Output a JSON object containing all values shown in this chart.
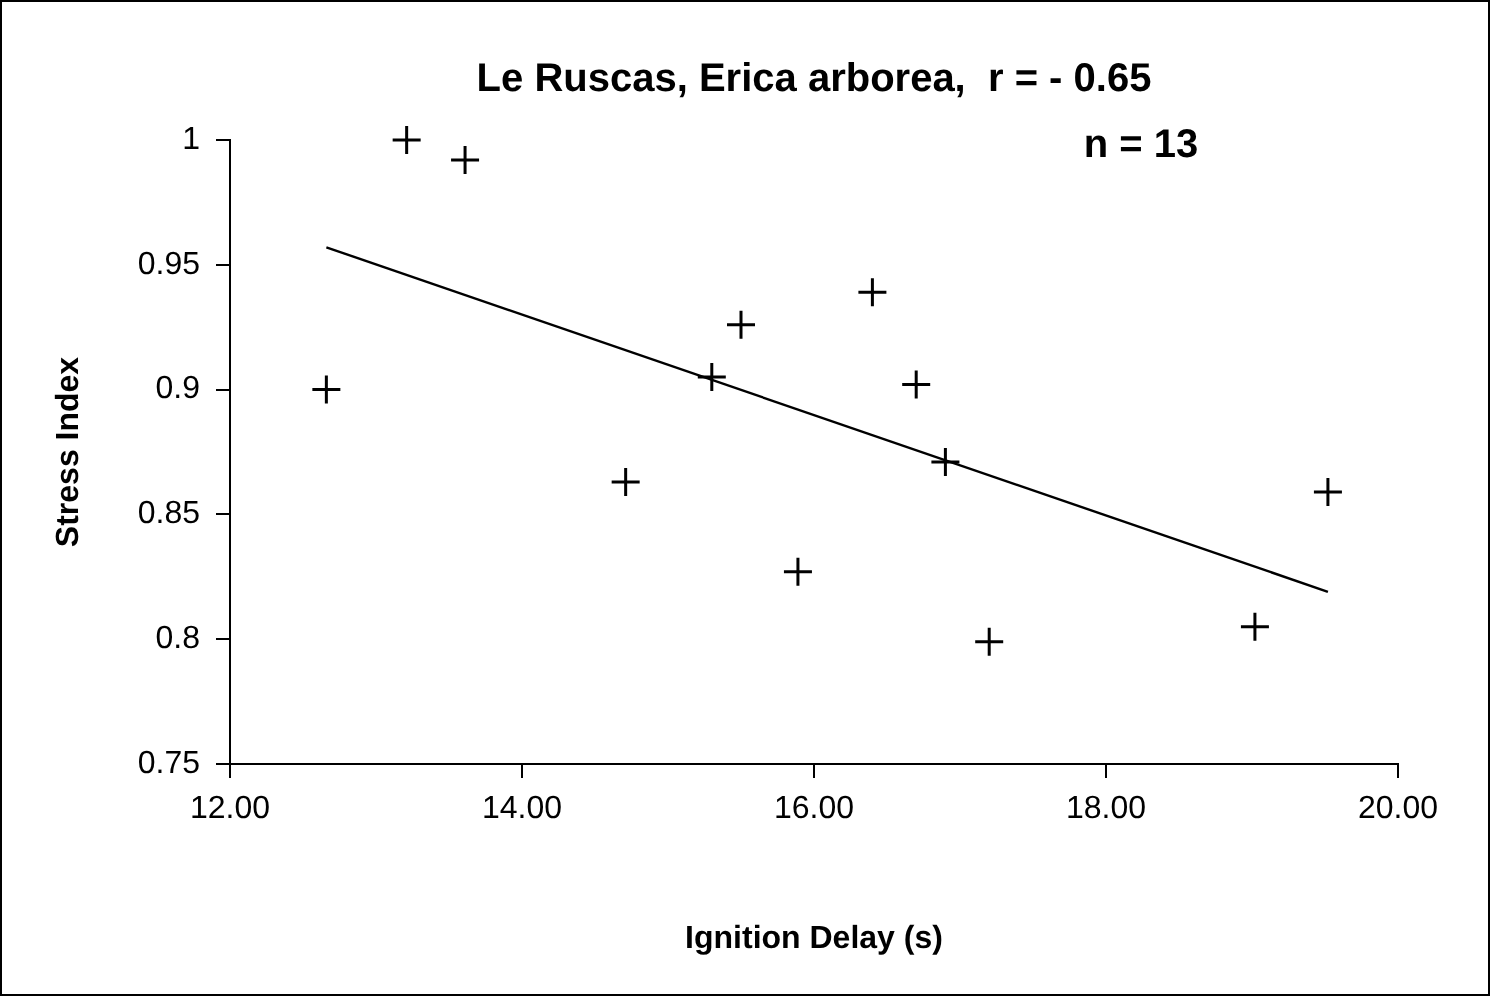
{
  "chart_data": {
    "type": "scatter",
    "title": "Le Ruscas, Erica arborea,  r = - 0.65",
    "xlabel": "Ignition Delay (s)",
    "ylabel": "Stress Index",
    "annotations": [
      "n = 13"
    ],
    "xlim": [
      12,
      20
    ],
    "xticks": [
      {
        "value": 12,
        "label": "12.00"
      },
      {
        "value": 14,
        "label": "14.00"
      },
      {
        "value": 16,
        "label": "16.00"
      },
      {
        "value": 18,
        "label": "18.00"
      },
      {
        "value": 20,
        "label": "20.00"
      }
    ],
    "ylim": [
      0.75,
      1
    ],
    "yticks": [
      0.75,
      0.8,
      0.85,
      0.9,
      0.95,
      1
    ],
    "grid": false,
    "legend": false,
    "series": [
      {
        "color": "#000000",
        "marker": "cross",
        "x": [
          12.66,
          13.21,
          13.61,
          14.71,
          15.3,
          15.5,
          15.89,
          16.4,
          16.7,
          16.9,
          17.2,
          19.02,
          19.52
        ],
        "values": [
          0.9,
          1.0,
          0.992,
          0.863,
          0.905,
          0.926,
          0.827,
          0.939,
          0.902,
          0.871,
          0.799,
          0.805,
          0.859
        ]
      },
      {
        "type": "line",
        "color": "#000000",
        "marker": "none",
        "line_style": "solid",
        "x": [
          12.66,
          19.52
        ],
        "values": [
          0.957,
          0.819
        ]
      }
    ]
  }
}
